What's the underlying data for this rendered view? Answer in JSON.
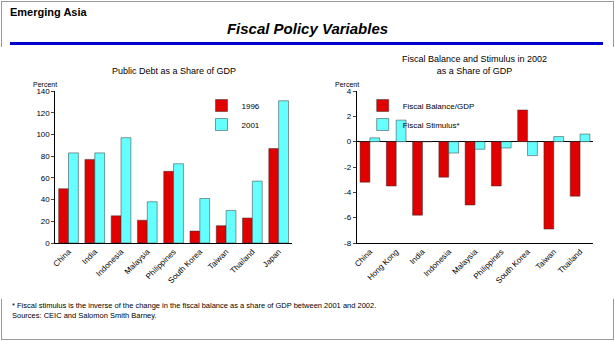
{
  "header": {
    "section": "Emerging Asia",
    "title": "Fiscal Policy Variables"
  },
  "chart_data": [
    {
      "type": "bar",
      "title": "Public Debt as a Share of GDP",
      "ylabel": "Percent",
      "categories": [
        "China",
        "India",
        "Indonesia",
        "Malaysia",
        "Philippines",
        "South Korea",
        "Taiwan",
        "Thailand",
        "Japan"
      ],
      "series": [
        {
          "name": "1996",
          "color": "#e00000",
          "values": [
            50,
            77,
            25,
            21,
            66,
            11,
            16,
            23,
            87
          ]
        },
        {
          "name": "2001",
          "color": "#66ffff",
          "values": [
            83,
            83,
            97,
            38,
            73,
            41,
            30,
            57,
            131
          ]
        }
      ],
      "ylim": [
        0,
        140
      ],
      "yticks": [
        0,
        20,
        40,
        60,
        80,
        100,
        120,
        140
      ],
      "grid": false,
      "legend": "upper right"
    },
    {
      "type": "bar",
      "title": "Fiscal Balance and Stimulus in 2002\nas a Share of GDP",
      "ylabel": "Percent",
      "categories": [
        "China",
        "Hong Kong",
        "India",
        "Indonesia",
        "Malaysia",
        "Philippines",
        "South Korea",
        "Taiwan",
        "Thailand"
      ],
      "series": [
        {
          "name": "Fiscal Balance/GDP",
          "color": "#e00000",
          "values": [
            -3.2,
            -3.5,
            -5.8,
            -2.8,
            -5.0,
            -3.5,
            2.5,
            -6.9,
            -4.3
          ]
        },
        {
          "name": "Fiscal Stimulus*",
          "color": "#66ffff",
          "values": [
            0.3,
            1.7,
            0,
            -0.9,
            -0.6,
            -0.5,
            -1.1,
            0.4,
            0.6
          ]
        }
      ],
      "ylim": [
        -8,
        4
      ],
      "yticks": [
        -8,
        -6,
        -4,
        -2,
        0,
        2,
        4
      ],
      "grid": false,
      "legend": "upper left"
    }
  ],
  "footnotes": [
    "* Fiscal stimulus is the inverse of the change in the fiscal balance as a share of GDP between 2001 and 2002.",
    "Sources: CEIC and Salomon Smith Barney."
  ]
}
